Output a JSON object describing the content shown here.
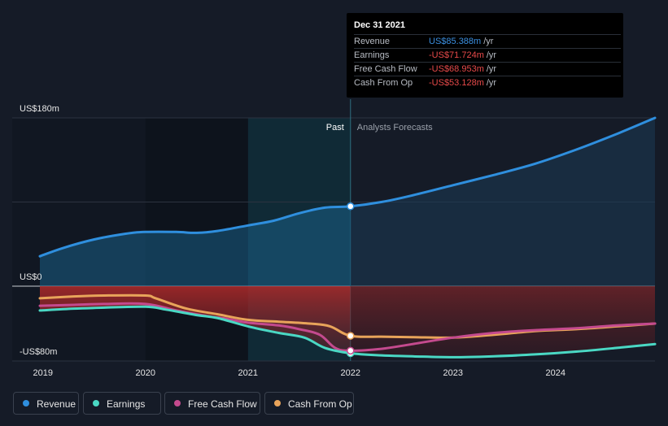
{
  "chart_data": {
    "type": "line",
    "title": "",
    "xlabel": "",
    "ylabel": "",
    "ylim": [
      -80,
      180
    ],
    "xlim": [
      2018.97,
      2024.97
    ],
    "y_axis_labels": [
      "US$180m",
      "US$0",
      "-US$80m"
    ],
    "x_ticks": [
      {
        "value": 2019,
        "label": "2019"
      },
      {
        "value": 2020,
        "label": "2020"
      },
      {
        "value": 2021,
        "label": "2021"
      },
      {
        "value": 2022,
        "label": "2022"
      },
      {
        "value": 2023,
        "label": "2023"
      },
      {
        "value": 2024,
        "label": "2024"
      }
    ],
    "past_label": "Past",
    "forecast_label": "Analysts Forecasts",
    "divider_x": 2022,
    "series": [
      {
        "name": "Revenue",
        "color": "#2f8fde",
        "x": [
          2018.97,
          2019.2,
          2019.5,
          2019.8,
          2020.0,
          2020.3,
          2020.5,
          2020.7,
          2021.0,
          2021.25,
          2021.5,
          2021.75,
          2022.0,
          2022.3,
          2022.6,
          2023.0,
          2023.4,
          2023.8,
          2024.2,
          2024.6,
          2024.97
        ],
        "values": [
          32,
          41,
          50,
          56,
          58,
          58,
          57,
          59,
          65,
          70,
          78,
          84,
          85.4,
          90,
          97,
          108,
          119,
          131,
          146,
          163,
          180
        ]
      },
      {
        "name": "Earnings",
        "color": "#4ad8c4",
        "x": [
          2018.97,
          2019.3,
          2019.6,
          2020.0,
          2020.2,
          2020.5,
          2020.7,
          2021.0,
          2021.3,
          2021.55,
          2021.75,
          2022.0,
          2022.3,
          2022.6,
          2023.0,
          2023.4,
          2023.8,
          2024.2,
          2024.6,
          2024.97
        ],
        "values": [
          -26,
          -24,
          -23,
          -22,
          -25,
          -31,
          -34,
          -43,
          -50,
          -55,
          -66,
          -71.7,
          -74,
          -75,
          -76,
          -75,
          -73,
          -70,
          -66,
          -62
        ]
      },
      {
        "name": "Free Cash Flow",
        "color": "#c44a8e",
        "x": [
          2018.97,
          2019.3,
          2019.6,
          2020.0,
          2020.3,
          2020.6,
          2020.8,
          2021.0,
          2021.3,
          2021.5,
          2021.7,
          2021.85,
          2022.0,
          2022.3,
          2022.6,
          2023.0,
          2023.4,
          2023.8,
          2024.2,
          2024.6,
          2024.97
        ],
        "values": [
          -21,
          -20,
          -19,
          -19,
          -26,
          -32,
          -35,
          -39,
          -42,
          -46,
          -52,
          -66,
          -69,
          -67,
          -62,
          -55,
          -50,
          -47,
          -45,
          -42,
          -40
        ]
      },
      {
        "name": "Cash From Op",
        "color": "#e8a45a",
        "x": [
          2018.97,
          2019.3,
          2019.6,
          2020.0,
          2020.1,
          2020.4,
          2020.7,
          2021.0,
          2021.3,
          2021.6,
          2021.8,
          2022.0,
          2022.3,
          2022.6,
          2023.0,
          2023.4,
          2023.8,
          2024.2,
          2024.6,
          2024.97
        ],
        "values": [
          -13,
          -11,
          -10,
          -10,
          -13,
          -24,
          -30,
          -36,
          -38,
          -40,
          -43,
          -53.1,
          -54,
          -54.5,
          -55,
          -52,
          -48,
          -46,
          -43,
          -40
        ]
      }
    ]
  },
  "tooltip": {
    "date": "Dec 31 2021",
    "unit": "/yr",
    "rows": [
      {
        "name": "Revenue",
        "value": "US$85.388m",
        "color": "#3b8fe0"
      },
      {
        "name": "Earnings",
        "value": "-US$71.724m",
        "color": "#e84a4a"
      },
      {
        "name": "Free Cash Flow",
        "value": "-US$68.953m",
        "color": "#e84a4a"
      },
      {
        "name": "Cash From Op",
        "value": "-US$53.128m",
        "color": "#e84a4a"
      }
    ]
  },
  "legend": [
    {
      "label": "Revenue",
      "color": "#2f8fde"
    },
    {
      "label": "Earnings",
      "color": "#4ad8c4"
    },
    {
      "label": "Free Cash Flow",
      "color": "#c44a8e"
    },
    {
      "label": "Cash From Op",
      "color": "#e8a45a"
    }
  ]
}
